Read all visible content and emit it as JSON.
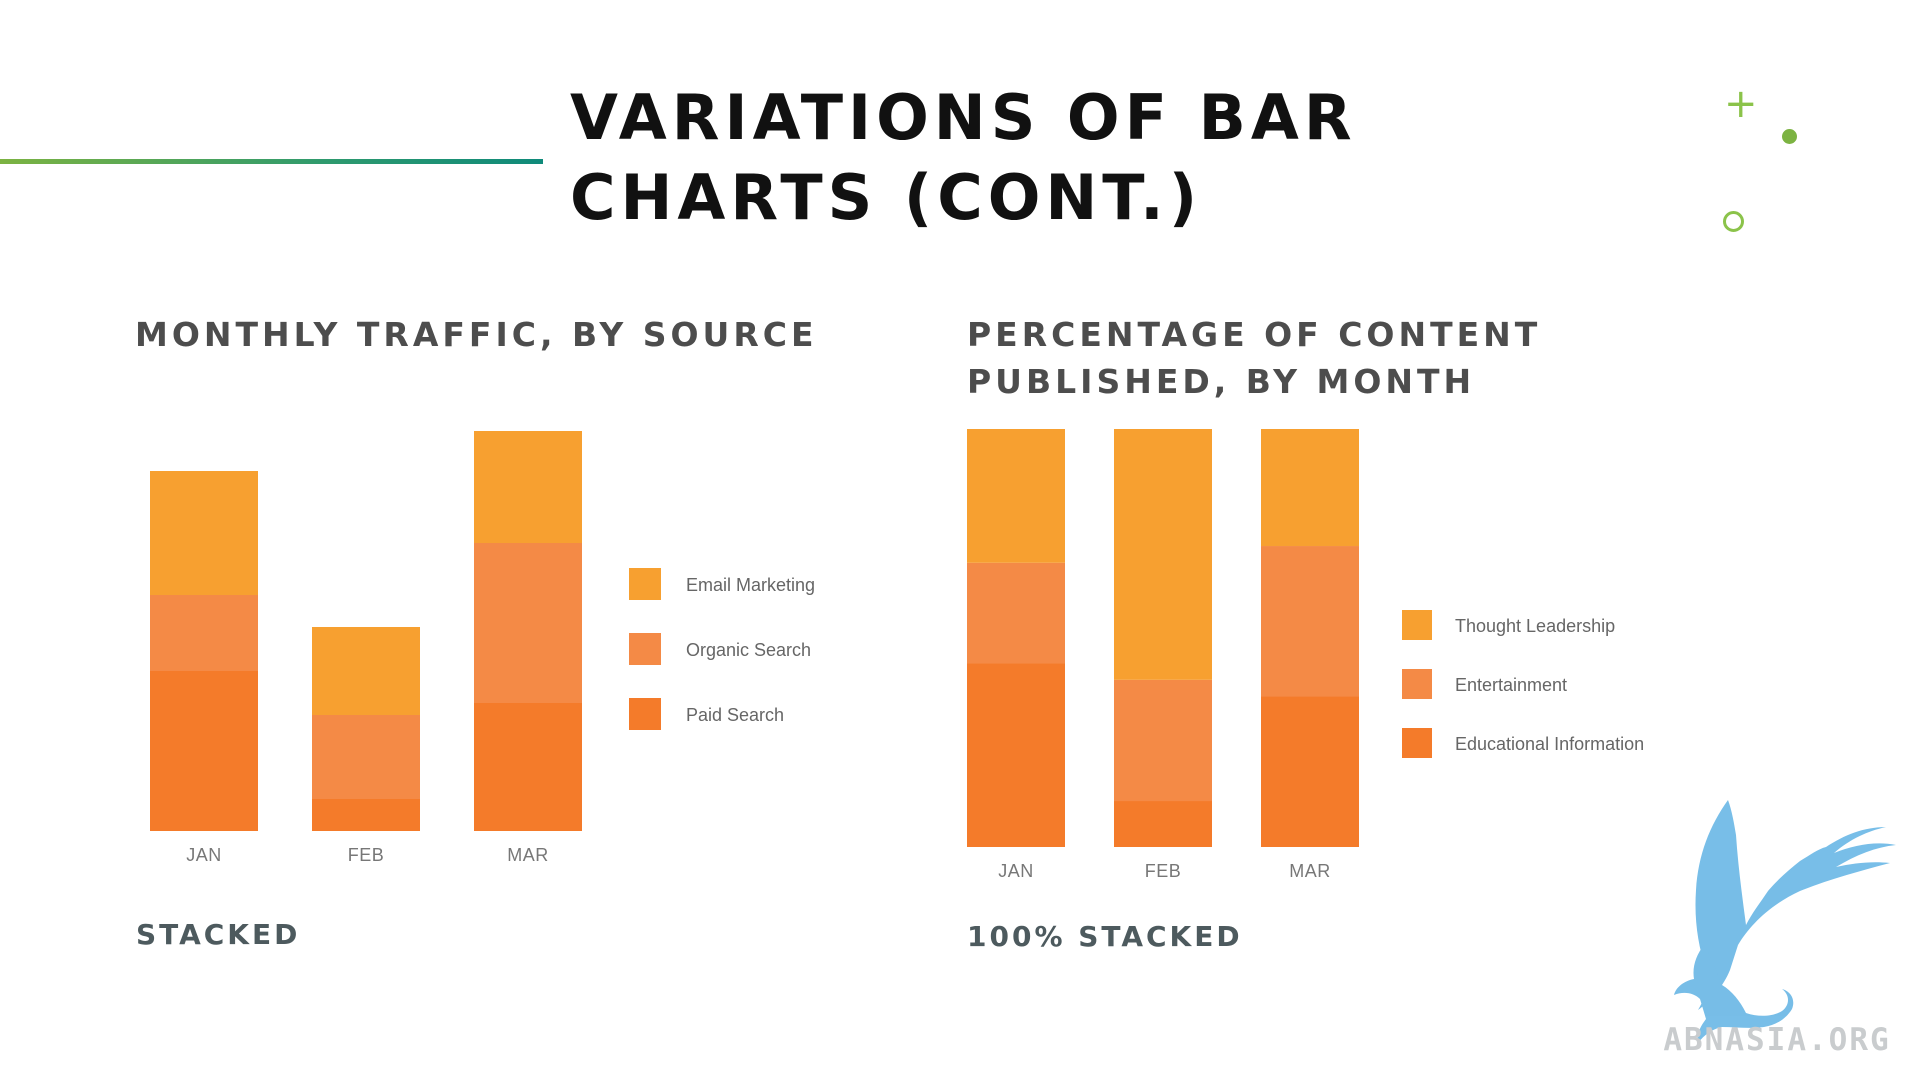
{
  "slide": {
    "title": "VARIATIONS OF BAR CHARTS (CONT.)"
  },
  "decorations": {
    "plus": "+"
  },
  "watermark": {
    "text": "ABNASIA.ORG"
  },
  "chart_data": [
    {
      "type": "bar",
      "stacked": true,
      "title": "MONTHLY TRAFFIC, BY SOURCE",
      "caption": "STACKED",
      "categories": [
        "JAN",
        "FEB",
        "MAR"
      ],
      "series": [
        {
          "name": "Paid Search",
          "values": [
            40,
            8,
            32
          ],
          "color": "#f47b2a"
        },
        {
          "name": "Organic Search",
          "values": [
            19,
            21,
            40
          ],
          "color": "#f48a46"
        },
        {
          "name": "Email Marketing",
          "values": [
            31,
            22,
            28
          ],
          "color": "#f7a030"
        }
      ],
      "ylim": [
        0,
        100
      ],
      "grid": false,
      "legend": "right"
    },
    {
      "type": "bar",
      "stacked": true,
      "normalized": true,
      "title": "PERCENTAGE OF CONTENT PUBLISHED, BY MONTH",
      "caption": "100% STACKED",
      "categories": [
        "JAN",
        "FEB",
        "MAR"
      ],
      "series": [
        {
          "name": "Educational Information",
          "values": [
            44,
            11,
            36
          ],
          "color": "#f47b2a"
        },
        {
          "name": "Entertainment",
          "values": [
            24,
            29,
            36
          ],
          "color": "#f48a46"
        },
        {
          "name": "Thought Leadership",
          "values": [
            32,
            60,
            28
          ],
          "color": "#f7a030"
        }
      ],
      "ylim": [
        0,
        100
      ],
      "grid": false,
      "legend": "right"
    }
  ]
}
